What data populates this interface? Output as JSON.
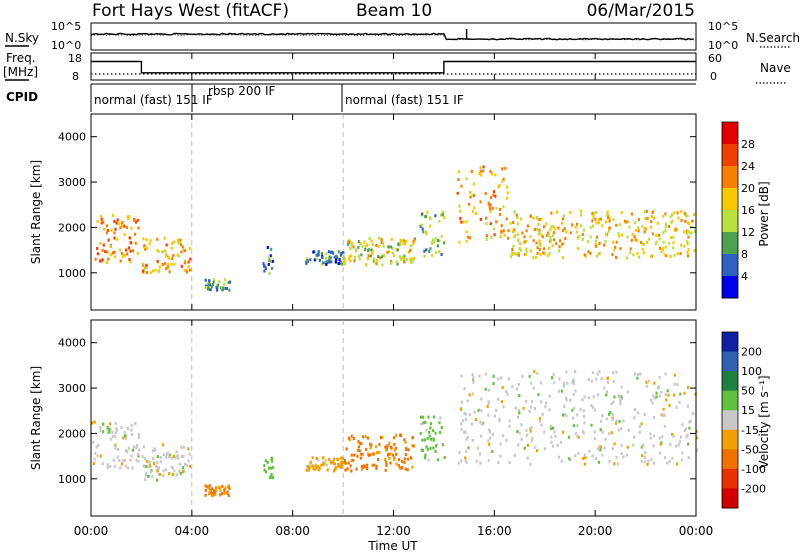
{
  "header": {
    "title": "Fort Hays West (fitACF)",
    "beam": "Beam 10",
    "date": "06/Mar/2015"
  },
  "summary": {
    "nsky_label": "N.Sky",
    "nsearch_label": "N.Search",
    "freq_label_top": "Freq.",
    "freq_label_unit": "[MHz]",
    "nave_label": "Nave",
    "cpid_label": "CPID",
    "noise_ticks": [
      "10^5",
      "10^0"
    ],
    "noise_ticks_right": [
      "10^5",
      "10^0"
    ],
    "freq_ticks": [
      "18",
      "8"
    ],
    "nave_ticks": [
      "60",
      "0"
    ],
    "cpid_segments": [
      "normal (fast) 151 IF",
      "rbsp 200 IF",
      "normal (fast) 151 IF"
    ]
  },
  "panels": {
    "ylabel": "Slant Range [km]",
    "yticks": [
      "4000",
      "3000",
      "2000",
      "1000"
    ],
    "xlabel": "Time UT",
    "xticks": [
      "00:00",
      "04:00",
      "08:00",
      "12:00",
      "16:00",
      "20:00",
      "00:00"
    ],
    "power_colorbar": {
      "label": "Power [dB]",
      "ticks": [
        "28",
        "24",
        "20",
        "16",
        "12",
        "8",
        "4"
      ],
      "colors": [
        "#e00000",
        "#f04000",
        "#f88000",
        "#f8c800",
        "#b8e040",
        "#50a050",
        "#3060c0",
        "#0000e8"
      ]
    },
    "velocity_colorbar": {
      "label": "Velocity [m s⁻¹]",
      "ticks": [
        "200",
        "100",
        "50",
        "15",
        "-15",
        "-50",
        "-100",
        "-200"
      ],
      "colors": [
        "#1020a0",
        "#3060b0",
        "#208040",
        "#60c040",
        "#c8c8c8",
        "#f0a000",
        "#f07000",
        "#e83000",
        "#d00000"
      ]
    }
  },
  "chart_data": [
    {
      "type": "line",
      "title": "Fort Hays West (fitACF)",
      "ylabel": "N.Sky / N.Search",
      "ylim": [
        1,
        100000
      ],
      "x": [
        0,
        14,
        14.05,
        24
      ],
      "series": [
        {
          "values": [
            1000,
            1000,
            100,
            100
          ]
        }
      ]
    },
    {
      "type": "line",
      "ylabel": "Freq. [MHz]",
      "ylim": [
        8,
        18
      ],
      "x": [
        0,
        2,
        2,
        14,
        14,
        24
      ],
      "series": [
        {
          "values": [
            15,
            15,
            10.5,
            10.5,
            15,
            15
          ]
        }
      ]
    },
    {
      "type": "heatmap",
      "ylabel": "Slant Range [km]",
      "xlabel": "Time UT",
      "colorbar_label": "Power [dB]",
      "xlim": [
        0,
        24
      ],
      "ylim": [
        180,
        4500
      ],
      "regions": [
        {
          "t": [
            0,
            1.9
          ],
          "range": [
            1250,
            2300
          ],
          "value": 20
        },
        {
          "t": [
            2,
            3.9
          ],
          "range": [
            1000,
            1800
          ],
          "value": 18
        },
        {
          "t": [
            4.5,
            5.5
          ],
          "range": [
            650,
            900
          ],
          "value": 8
        },
        {
          "t": [
            6.8,
            7.2
          ],
          "range": [
            1000,
            1600
          ],
          "value": 6
        },
        {
          "t": [
            8.5,
            10
          ],
          "range": [
            1200,
            1500
          ],
          "value": 6
        },
        {
          "t": [
            10,
            12.8
          ],
          "range": [
            1200,
            1800
          ],
          "value": 14
        },
        {
          "t": [
            13,
            14
          ],
          "range": [
            1400,
            2400
          ],
          "value": 10
        },
        {
          "t": [
            14.5,
            16.5
          ],
          "range": [
            1700,
            3400
          ],
          "value": 18
        },
        {
          "t": [
            16.5,
            24
          ],
          "range": [
            1350,
            2400
          ],
          "value": 16
        }
      ]
    },
    {
      "type": "heatmap",
      "ylabel": "Slant Range [km]",
      "xlabel": "Time UT",
      "colorbar_label": "Velocity [m s⁻¹]",
      "xlim": [
        0,
        24
      ],
      "ylim": [
        180,
        4500
      ],
      "regions": [
        {
          "t": [
            0,
            1.9
          ],
          "range": [
            1250,
            2300
          ],
          "value": 0
        },
        {
          "t": [
            2,
            3.9
          ],
          "range": [
            1000,
            1800
          ],
          "value": 0
        },
        {
          "t": [
            4.5,
            5.5
          ],
          "range": [
            650,
            900
          ],
          "value": -50
        },
        {
          "t": [
            6.8,
            7.2
          ],
          "range": [
            1000,
            1600
          ],
          "value": 30
        },
        {
          "t": [
            8.5,
            10
          ],
          "range": [
            1200,
            1500
          ],
          "value": -30
        },
        {
          "t": [
            10,
            12.8
          ],
          "range": [
            1200,
            2000
          ],
          "value": -60
        },
        {
          "t": [
            13,
            14
          ],
          "range": [
            1400,
            2400
          ],
          "value": 30
        },
        {
          "t": [
            14.5,
            24
          ],
          "range": [
            1350,
            3400
          ],
          "value": 0
        }
      ]
    }
  ]
}
